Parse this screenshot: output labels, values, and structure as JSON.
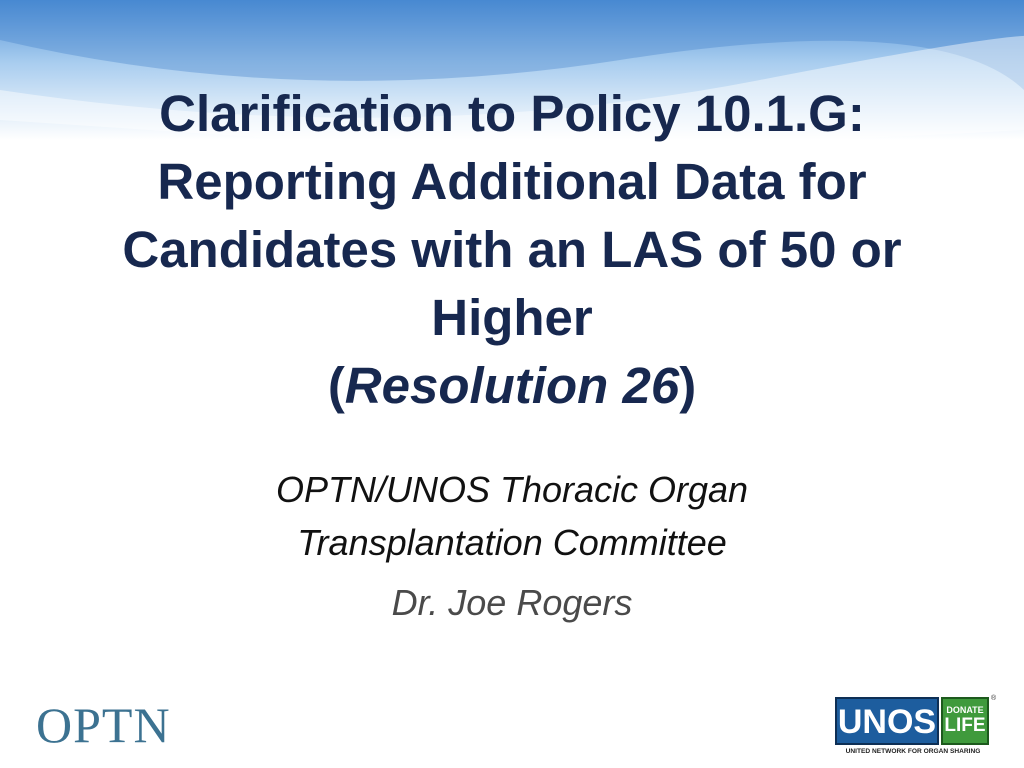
{
  "slide": {
    "title": {
      "lines": [
        "Clarification to Policy 10.1.G:",
        "Reporting Additional Data for",
        "Candidates with an LAS of 50 or",
        "Higher"
      ],
      "resolution": {
        "open": "(",
        "text": "Resolution 26",
        "close": ")"
      }
    },
    "subtitle": {
      "lines": [
        "OPTN/UNOS Thoracic Organ",
        "Transplantation Committee"
      ]
    },
    "presenter": "Dr. Joe Rogers",
    "logos": {
      "optn": "OPTN",
      "unos": {
        "name": "UNOS",
        "donate": "DONATE",
        "life": "LIFE",
        "registered": "®",
        "tagline": "UNITED NETWORK FOR ORGAN SHARING"
      }
    }
  }
}
